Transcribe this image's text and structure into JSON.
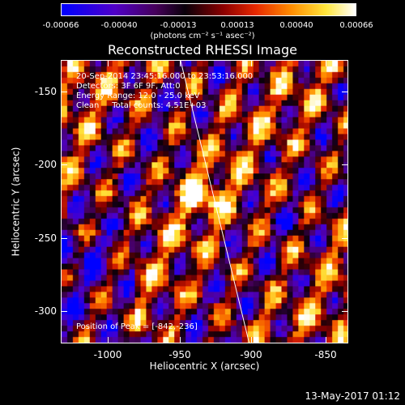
{
  "colorbar": {
    "ticks": [
      "-0.00066",
      "-0.00040",
      "-0.00013",
      "0.00013",
      "0.00040",
      "0.00066"
    ],
    "units": "(photons cm⁻² s⁻¹ asec⁻²)"
  },
  "title": "Reconstructed RHESSI Image",
  "info": {
    "line1": "20-Sep-2014 23:45:16.000 to 23:53:16.000",
    "line2": "Detectors: 3F 6F 9F, Att:0",
    "line3": "Energy Range: 12.0 - 25.0 keV",
    "line4": "Clean     Total counts: 4.51E+03",
    "peak": "Position of Peak = [-842,-236]"
  },
  "axes": {
    "xlabel": "Heliocentric X (arcsec)",
    "ylabel": "Heliocentric Y (arcsec)",
    "xticks": [
      "-1000",
      "-950",
      "-900",
      "-850"
    ],
    "yticks": [
      "-150",
      "-200",
      "-250",
      "-300"
    ]
  },
  "footer": "13-May-2017 01:12",
  "chart_data": {
    "type": "heatmap",
    "title": "Reconstructed RHESSI Image",
    "xlabel": "Heliocentric X (arcsec)",
    "ylabel": "Heliocentric Y (arcsec)",
    "xlim": [
      -1030,
      -830
    ],
    "ylim": [
      -323,
      -126
    ],
    "color_range": [
      -0.00066,
      0.00066
    ],
    "peak_position": [
      -842,
      -236
    ],
    "colormap": "blue-purple-red-orange-yellow-white"
  }
}
